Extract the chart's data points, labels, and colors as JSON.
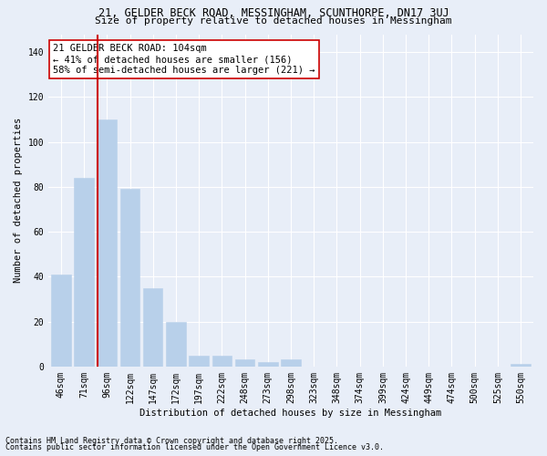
{
  "title": "21, GELDER BECK ROAD, MESSINGHAM, SCUNTHORPE, DN17 3UJ",
  "subtitle": "Size of property relative to detached houses in Messingham",
  "xlabel": "Distribution of detached houses by size in Messingham",
  "ylabel": "Number of detached properties",
  "categories": [
    "46sqm",
    "71sqm",
    "96sqm",
    "122sqm",
    "147sqm",
    "172sqm",
    "197sqm",
    "222sqm",
    "248sqm",
    "273sqm",
    "298sqm",
    "323sqm",
    "348sqm",
    "374sqm",
    "399sqm",
    "424sqm",
    "449sqm",
    "474sqm",
    "500sqm",
    "525sqm",
    "550sqm"
  ],
  "values": [
    41,
    84,
    110,
    79,
    35,
    20,
    5,
    5,
    3,
    2,
    3,
    0,
    0,
    0,
    0,
    0,
    0,
    0,
    0,
    0,
    1
  ],
  "bar_color": "#b8d0ea",
  "bar_edge_color": "#b8d0ea",
  "vline_color": "#cc0000",
  "annotation_title": "21 GELDER BECK ROAD: 104sqm",
  "annotation_line1": "← 41% of detached houses are smaller (156)",
  "annotation_line2": "58% of semi-detached houses are larger (221) →",
  "annotation_box_facecolor": "#ffffff",
  "annotation_box_edgecolor": "#cc0000",
  "ylim": [
    0,
    148
  ],
  "yticks": [
    0,
    20,
    40,
    60,
    80,
    100,
    120,
    140
  ],
  "footnote1": "Contains HM Land Registry data © Crown copyright and database right 2025.",
  "footnote2": "Contains public sector information licensed under the Open Government Licence v3.0.",
  "bg_color": "#e8eef8",
  "plot_bg_color": "#e8eef8",
  "grid_color": "#ffffff",
  "title_fontsize": 8.5,
  "subtitle_fontsize": 8,
  "axis_label_fontsize": 7.5,
  "tick_fontsize": 7,
  "annotation_fontsize": 7.5,
  "footnote_fontsize": 6
}
